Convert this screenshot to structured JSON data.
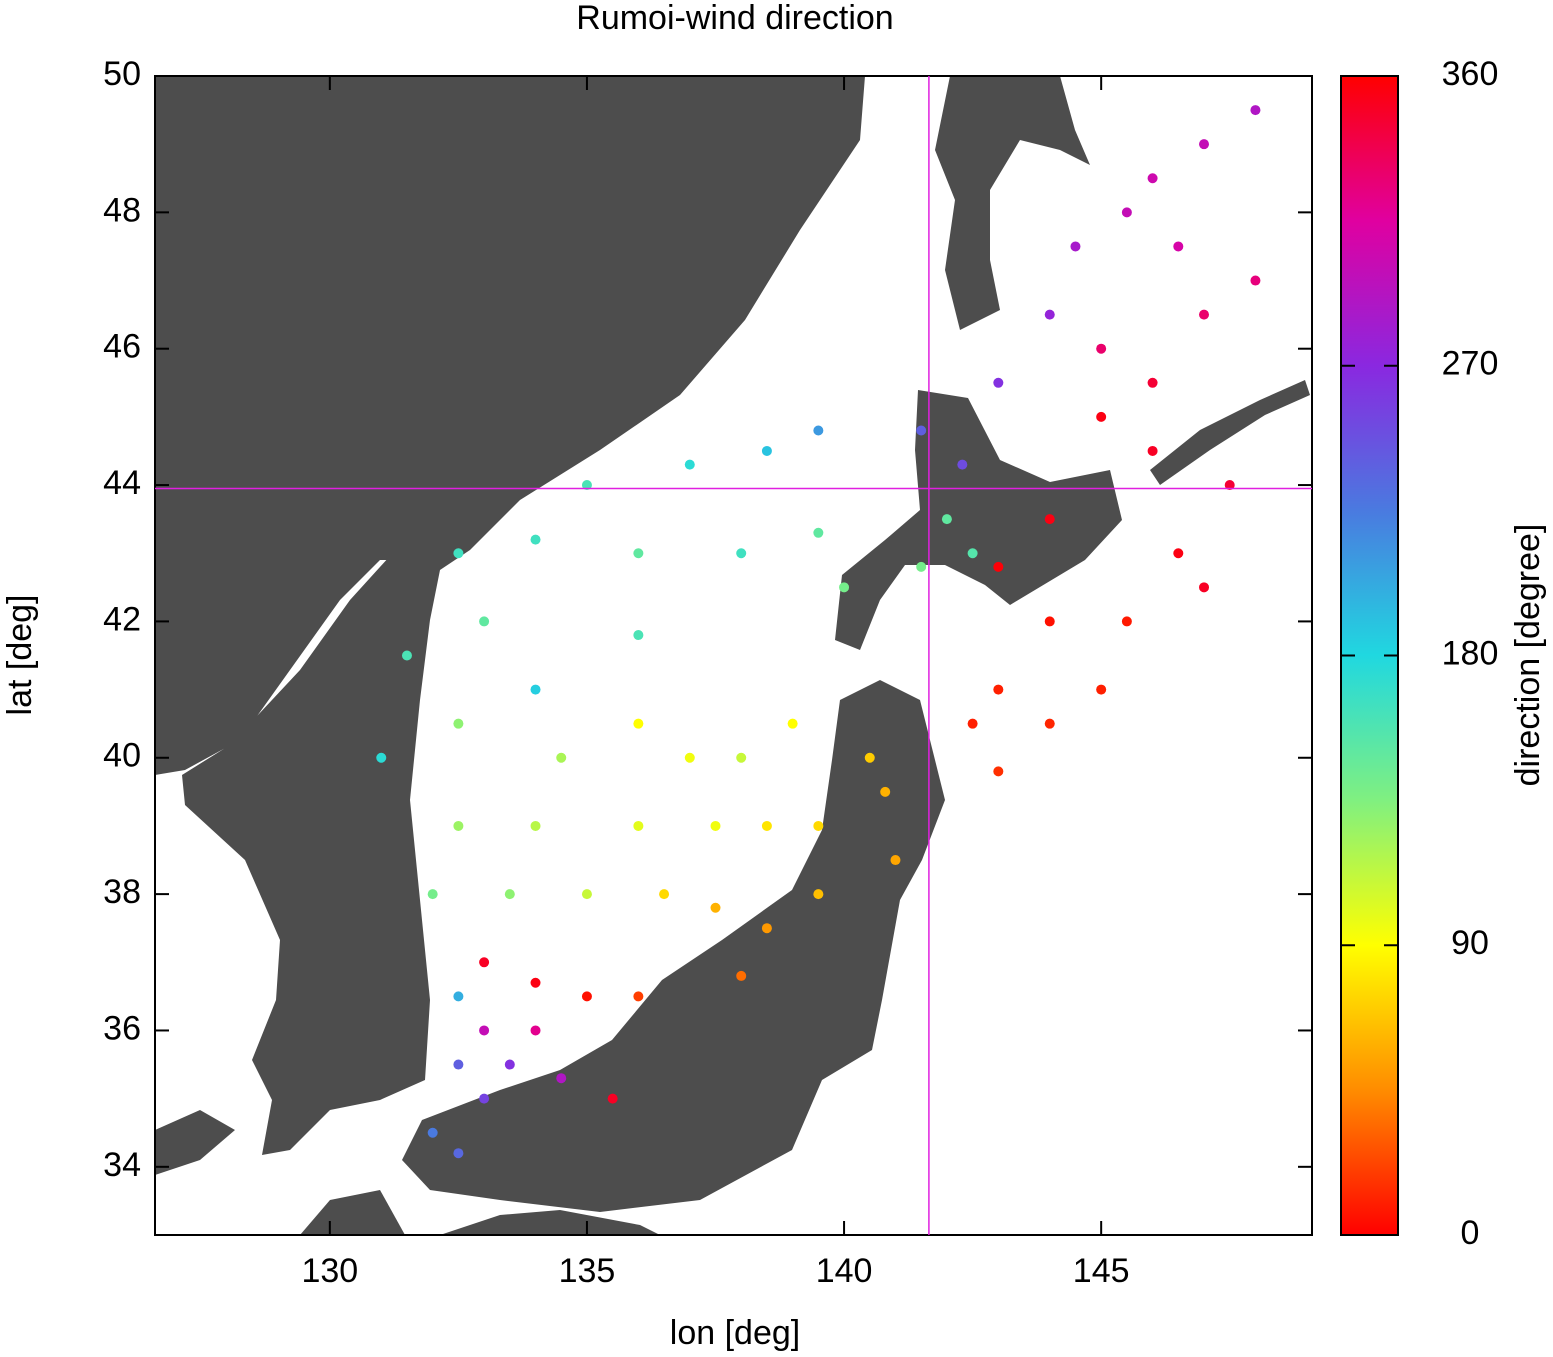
{
  "chart_data": {
    "type": "scatter",
    "title": "Rumoi-wind direction",
    "x_label": "lon [deg]",
    "y_label": "lat [deg]",
    "colorbar_label": "direction [degree]",
    "xlim": [
      126.6,
      149.1
    ],
    "ylim": [
      33,
      50
    ],
    "xticks": [
      130,
      135,
      140,
      145
    ],
    "yticks": [
      34,
      36,
      38,
      40,
      42,
      44,
      46,
      48,
      50
    ],
    "clim": [
      0,
      360
    ],
    "cticks": [
      0,
      90,
      180,
      270,
      360
    ],
    "colormap": [
      {
        "value": 0,
        "color": "#ff0000"
      },
      {
        "value": 45,
        "color": "#ff8c00"
      },
      {
        "value": 90,
        "color": "#ffff00"
      },
      {
        "value": 135,
        "color": "#80f080"
      },
      {
        "value": 180,
        "color": "#20d8e0"
      },
      {
        "value": 225,
        "color": "#4a7ae0"
      },
      {
        "value": 270,
        "color": "#8a28e0"
      },
      {
        "value": 315,
        "color": "#e000a0"
      },
      {
        "value": 360,
        "color": "#ff0000"
      }
    ],
    "crosshair": {
      "x": 141.65,
      "y": 43.95,
      "color": "#e020e0"
    },
    "x": [
      146,
      147,
      148,
      145.5,
      146.5,
      144.5,
      144,
      143,
      145,
      146,
      147,
      148,
      145,
      146,
      147.5,
      144,
      143,
      144,
      145.5,
      146.5,
      143,
      144,
      145,
      143,
      142.5,
      147,
      142,
      141.5,
      142.5,
      142.3,
      141.5,
      137,
      138.5,
      139.5,
      135,
      134,
      132.5,
      136,
      138,
      139.5,
      140,
      133,
      131.5,
      136,
      134,
      132.5,
      131,
      134.5,
      136,
      137,
      138,
      139,
      140.5,
      140.8,
      141,
      139.5,
      138.5,
      137.5,
      136,
      134,
      132.5,
      132,
      133.5,
      135,
      136.5,
      137.5,
      138.5,
      139.5,
      138,
      133,
      134,
      135,
      136,
      133,
      134,
      132.5,
      132.5,
      133.5,
      134.5,
      135.5,
      132,
      132.5,
      133
    ],
    "y": [
      48.5,
      49,
      49.5,
      48,
      47.5,
      47.5,
      46.5,
      45.5,
      46,
      45.5,
      46.5,
      47,
      45,
      44.5,
      44,
      43.5,
      42.8,
      42,
      42,
      43,
      41,
      40.5,
      41,
      39.8,
      40.5,
      42.5,
      43.5,
      42.8,
      43,
      44.3,
      44.8,
      44.3,
      44.5,
      44.8,
      44,
      43.2,
      43,
      43,
      43,
      43.3,
      42.5,
      42,
      41.5,
      41.8,
      41,
      40.5,
      40,
      40,
      40.5,
      40,
      40,
      40.5,
      40,
      39.5,
      38.5,
      39,
      39,
      39,
      39,
      39,
      39,
      38,
      38,
      38,
      38,
      37.8,
      37.5,
      38,
      36.8,
      37,
      36.7,
      36.5,
      36.5,
      36,
      36,
      36.5,
      35.5,
      35.5,
      35.3,
      35,
      34.5,
      34.2,
      35
    ],
    "values": [
      305,
      300,
      290,
      300,
      310,
      285,
      275,
      265,
      330,
      345,
      330,
      325,
      355,
      350,
      345,
      355,
      358,
      5,
      8,
      355,
      10,
      12,
      10,
      15,
      10,
      350,
      150,
      140,
      155,
      250,
      240,
      175,
      190,
      210,
      160,
      165,
      165,
      150,
      165,
      150,
      140,
      150,
      160,
      160,
      185,
      130,
      175,
      120,
      90,
      95,
      110,
      90,
      70,
      60,
      55,
      75,
      80,
      95,
      100,
      115,
      125,
      140,
      130,
      110,
      75,
      60,
      50,
      65,
      35,
      350,
      355,
      5,
      20,
      300,
      320,
      200,
      240,
      265,
      290,
      350,
      225,
      235,
      255
    ]
  }
}
